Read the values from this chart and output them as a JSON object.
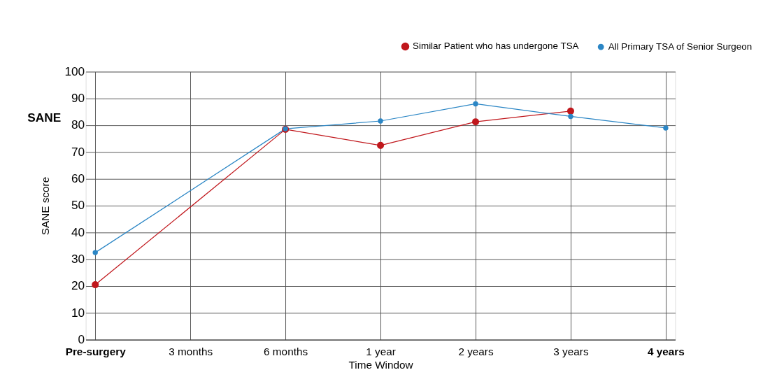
{
  "chart_data": {
    "type": "line",
    "xlabel": "Time Window",
    "ylabel": "SANE score",
    "annotations": [
      "SANE"
    ],
    "categories": [
      "Pre-surgery",
      "3 months",
      "6 months",
      "1 year",
      "2 years",
      "3 years",
      "4 years"
    ],
    "series": [
      {
        "name": "Similar Patient who has undergone TSA",
        "color": "#c0171c",
        "values": [
          20.5,
          null,
          78.5,
          72.5,
          81.3,
          85.3,
          null
        ]
      },
      {
        "name": "All Primary TSA of Senior Surgeon",
        "color": "#2b86c5",
        "values": [
          32.5,
          null,
          78.7,
          81.6,
          88,
          83.3,
          79
        ]
      }
    ],
    "ylim": [
      0,
      100
    ],
    "yticks": [
      0,
      10,
      20,
      30,
      40,
      50,
      60,
      70,
      80,
      90,
      100
    ],
    "grid": true,
    "legend": "top right",
    "marker": "circle",
    "line_style": "solid"
  }
}
